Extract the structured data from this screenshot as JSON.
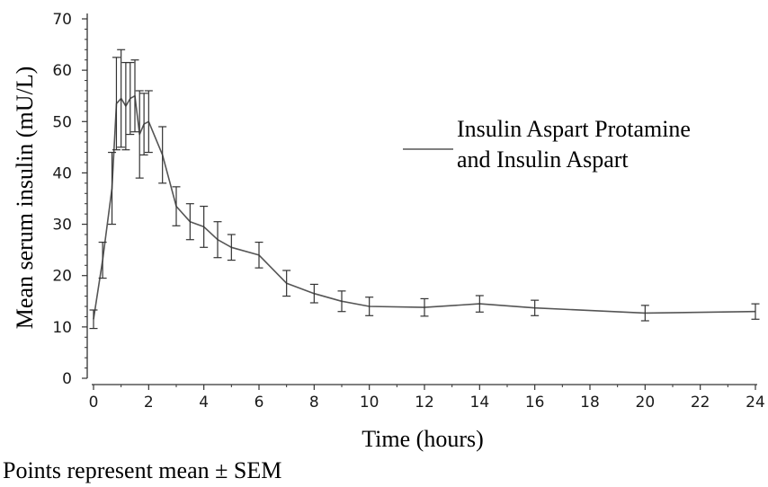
{
  "chart_data": {
    "type": "line",
    "title": "",
    "xlabel": "Time (hours)",
    "ylabel": "Mean serum insulin (mU/L)",
    "xlim": [
      0,
      24
    ],
    "ylim": [
      0,
      70
    ],
    "x_ticks": [
      0,
      2,
      4,
      6,
      8,
      10,
      12,
      14,
      16,
      18,
      20,
      22,
      24
    ],
    "y_ticks": [
      0,
      10,
      20,
      30,
      40,
      50,
      60,
      70
    ],
    "grid": false,
    "legend": {
      "position": "right",
      "entries": [
        "Insulin Aspart Protamine",
        "and Insulin Aspart"
      ]
    },
    "footnote": "Points represent mean  ± SEM",
    "series": [
      {
        "color": "#555555",
        "x": [
          0,
          0.33,
          0.67,
          0.83,
          1.0,
          1.17,
          1.33,
          1.5,
          1.67,
          1.83,
          2.0,
          2.5,
          3.0,
          3.5,
          4.0,
          4.5,
          5.0,
          6.0,
          7.0,
          8.0,
          9.0,
          10.0,
          12.0,
          14.0,
          16.0,
          20.0,
          24.0
        ],
        "y": [
          11.5,
          23,
          37,
          53.5,
          54.5,
          53,
          54.5,
          55,
          47.5,
          49.5,
          50,
          43.5,
          33.5,
          30.5,
          29.5,
          27,
          25.5,
          24,
          18.5,
          16.5,
          15,
          14,
          13.8,
          14.5,
          13.7,
          12.7,
          13
        ],
        "error": [
          1.8,
          3.5,
          7,
          9,
          9.5,
          8.5,
          7,
          7,
          8.5,
          6,
          6,
          5.5,
          3.8,
          3.5,
          4,
          3.5,
          2.5,
          2.5,
          2.5,
          1.8,
          2,
          1.8,
          1.7,
          1.6,
          1.5,
          1.5,
          1.5
        ]
      }
    ]
  }
}
